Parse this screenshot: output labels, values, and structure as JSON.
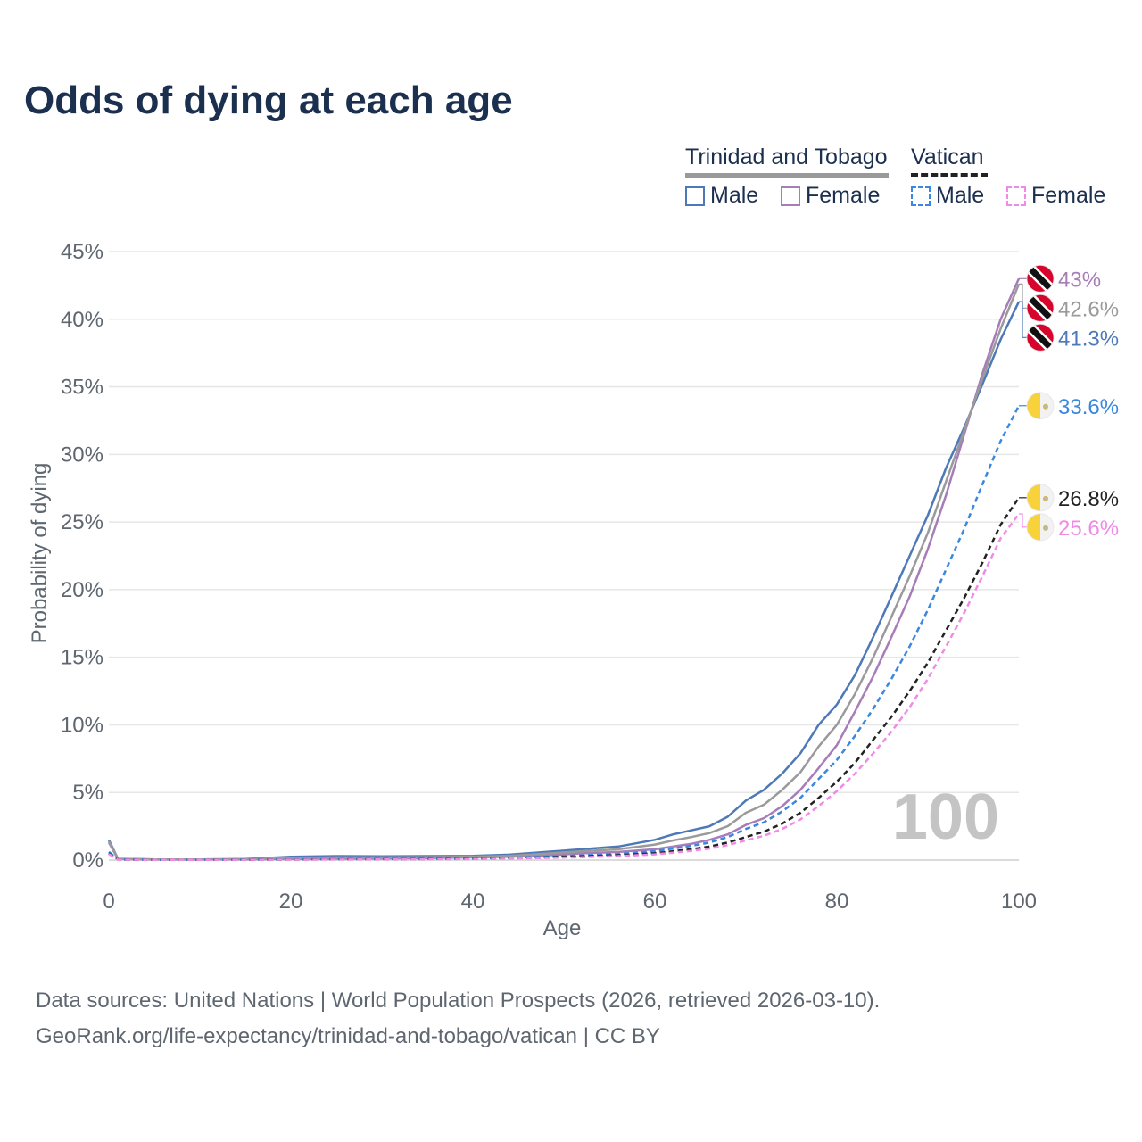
{
  "title": "Odds of dying at each age",
  "legend": {
    "groups": [
      {
        "name": "Trinidad and Tobago",
        "male": "Male",
        "female": "Female"
      },
      {
        "name": "Vatican",
        "male": "Male",
        "female": "Female"
      }
    ]
  },
  "watermark_age": "100",
  "footer": {
    "line1": "Data sources: United Nations | World Population Prospects (2026, retrieved 2026-03-10).",
    "line2": "GeoRank.org/life-expectancy/trinidad-and-tobago/vatican | CC BY"
  },
  "chart_data": {
    "type": "line",
    "title": "Odds of dying at each age",
    "xlabel": "Age",
    "ylabel": "Probability of dying",
    "xlim": [
      0,
      100
    ],
    "ylim": [
      0,
      45
    ],
    "x_ticks": [
      "0",
      "20",
      "40",
      "60",
      "80",
      "100"
    ],
    "y_ticks": [
      "0%",
      "5%",
      "10%",
      "15%",
      "20%",
      "25%",
      "30%",
      "35%",
      "40%",
      "45%"
    ],
    "x": [
      0,
      1,
      5,
      10,
      15,
      20,
      25,
      30,
      35,
      40,
      44,
      48,
      52,
      56,
      60,
      62,
      64,
      66,
      68,
      70,
      72,
      74,
      76,
      78,
      80,
      82,
      84,
      86,
      88,
      90,
      92,
      94,
      96,
      98,
      100
    ],
    "series": [
      {
        "name": "Trinidad and Tobago Male",
        "country": "Trinidad and Tobago",
        "sex": "Male",
        "color": "#4e79b8",
        "dash": "solid",
        "values": [
          1.5,
          0.1,
          0.05,
          0.05,
          0.08,
          0.25,
          0.3,
          0.28,
          0.3,
          0.32,
          0.4,
          0.6,
          0.8,
          1.0,
          1.5,
          1.9,
          2.2,
          2.5,
          3.2,
          4.4,
          5.2,
          6.4,
          7.9,
          10.0,
          11.5,
          13.7,
          16.5,
          19.5,
          22.5,
          25.5,
          29.0,
          32.0,
          35.2,
          38.5,
          41.3
        ]
      },
      {
        "name": "Trinidad and Tobago Female",
        "country": "Trinidad and Tobago",
        "sex": "Female",
        "color": "#a77db8",
        "dash": "solid",
        "values": [
          1.3,
          0.08,
          0.04,
          0.04,
          0.05,
          0.08,
          0.1,
          0.12,
          0.15,
          0.2,
          0.25,
          0.35,
          0.5,
          0.6,
          0.8,
          1.0,
          1.2,
          1.5,
          1.9,
          2.6,
          3.1,
          4.0,
          5.2,
          6.8,
          8.5,
          11.0,
          13.6,
          16.5,
          19.5,
          23.0,
          27.0,
          31.5,
          36.0,
          40.0,
          43.0
        ]
      },
      {
        "name": "Trinidad and Tobago Total",
        "country": "Trinidad and Tobago",
        "sex": "Total",
        "color": "#9a9a9a",
        "dash": "solid",
        "values": [
          1.4,
          0.09,
          0.045,
          0.045,
          0.065,
          0.16,
          0.2,
          0.2,
          0.22,
          0.26,
          0.32,
          0.48,
          0.65,
          0.8,
          1.15,
          1.45,
          1.7,
          2.0,
          2.5,
          3.5,
          4.1,
          5.2,
          6.5,
          8.4,
          10.0,
          12.3,
          15.0,
          18.0,
          21.0,
          24.2,
          28.0,
          31.8,
          35.6,
          39.3,
          42.6
        ]
      },
      {
        "name": "Vatican Male",
        "country": "Vatican",
        "sex": "Male",
        "color": "#3a87e0",
        "dash": "dashed",
        "values": [
          0.6,
          0.05,
          0.02,
          0.02,
          0.03,
          0.05,
          0.07,
          0.08,
          0.1,
          0.12,
          0.18,
          0.25,
          0.35,
          0.45,
          0.65,
          0.85,
          1.05,
          1.3,
          1.7,
          2.3,
          2.8,
          3.6,
          4.6,
          6.0,
          7.4,
          9.2,
          11.2,
          13.4,
          15.8,
          18.5,
          21.5,
          24.5,
          27.8,
          31.0,
          33.6
        ]
      },
      {
        "name": "Vatican Total",
        "country": "Vatican",
        "sex": "Total",
        "color": "#222222",
        "dash": "dashed",
        "values": [
          0.5,
          0.04,
          0.02,
          0.02,
          0.025,
          0.04,
          0.05,
          0.06,
          0.08,
          0.1,
          0.14,
          0.2,
          0.28,
          0.36,
          0.5,
          0.65,
          0.8,
          1.0,
          1.3,
          1.7,
          2.1,
          2.7,
          3.5,
          4.6,
          5.8,
          7.2,
          8.9,
          10.6,
          12.5,
          14.6,
          17.0,
          19.4,
          22.0,
          24.8,
          26.8
        ]
      },
      {
        "name": "Vatican Female",
        "country": "Vatican",
        "sex": "Female",
        "color": "#f08ae8",
        "dash": "dashed",
        "values": [
          0.45,
          0.035,
          0.015,
          0.015,
          0.02,
          0.03,
          0.04,
          0.05,
          0.06,
          0.08,
          0.11,
          0.16,
          0.22,
          0.3,
          0.42,
          0.55,
          0.68,
          0.85,
          1.1,
          1.45,
          1.8,
          2.3,
          3.0,
          4.0,
          5.1,
          6.4,
          7.9,
          9.5,
          11.3,
          13.4,
          15.8,
          18.3,
          21.0,
          23.8,
          25.6
        ]
      }
    ],
    "end_labels": [
      {
        "text": "43%",
        "color": "#a77db8",
        "flag": "trinidad",
        "value": 43.0
      },
      {
        "text": "42.6%",
        "color": "#9a9a9a",
        "flag": "trinidad",
        "value": 42.6
      },
      {
        "text": "41.3%",
        "color": "#4e79b8",
        "flag": "trinidad",
        "value": 41.3
      },
      {
        "text": "33.6%",
        "color": "#3a87e0",
        "flag": "vatican",
        "value": 33.6
      },
      {
        "text": "26.8%",
        "color": "#222222",
        "flag": "vatican",
        "value": 26.8
      },
      {
        "text": "25.6%",
        "color": "#f08ae8",
        "flag": "vatican",
        "value": 25.6
      }
    ]
  }
}
